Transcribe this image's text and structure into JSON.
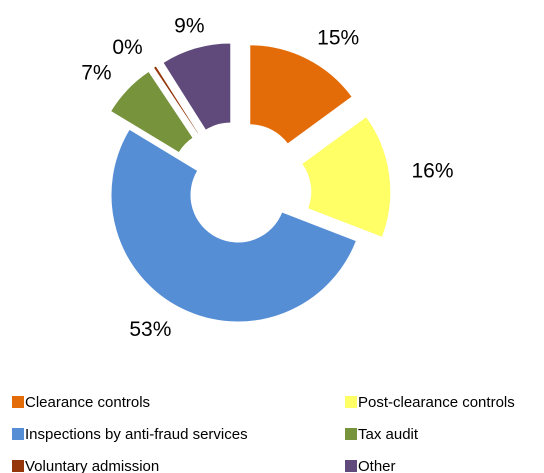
{
  "chart_data": {
    "type": "donut",
    "series": [
      {
        "name": "Clearance controls",
        "color": "#e36c09",
        "values": [
          15
        ],
        "value_labels": [
          "15%"
        ]
      },
      {
        "name": "Post-clearance controls",
        "color": "#ffff66",
        "values": [
          16
        ],
        "value_labels": [
          "16%"
        ]
      },
      {
        "name": "Inspections by anti-fraud services",
        "color": "#558ed5",
        "values": [
          53
        ],
        "value_labels": [
          "53%"
        ]
      },
      {
        "name": "Tax audit",
        "color": "#77933c",
        "values": [
          7
        ],
        "value_labels": [
          "7%"
        ]
      },
      {
        "name": "Voluntary admission",
        "color": "#943609",
        "values": [
          0.4
        ],
        "value_labels": [
          "0%"
        ]
      },
      {
        "name": "Other",
        "color": "#604a7b",
        "values": [
          9
        ],
        "value_labels": [
          "9%"
        ]
      }
    ],
    "legend": "bottom"
  }
}
